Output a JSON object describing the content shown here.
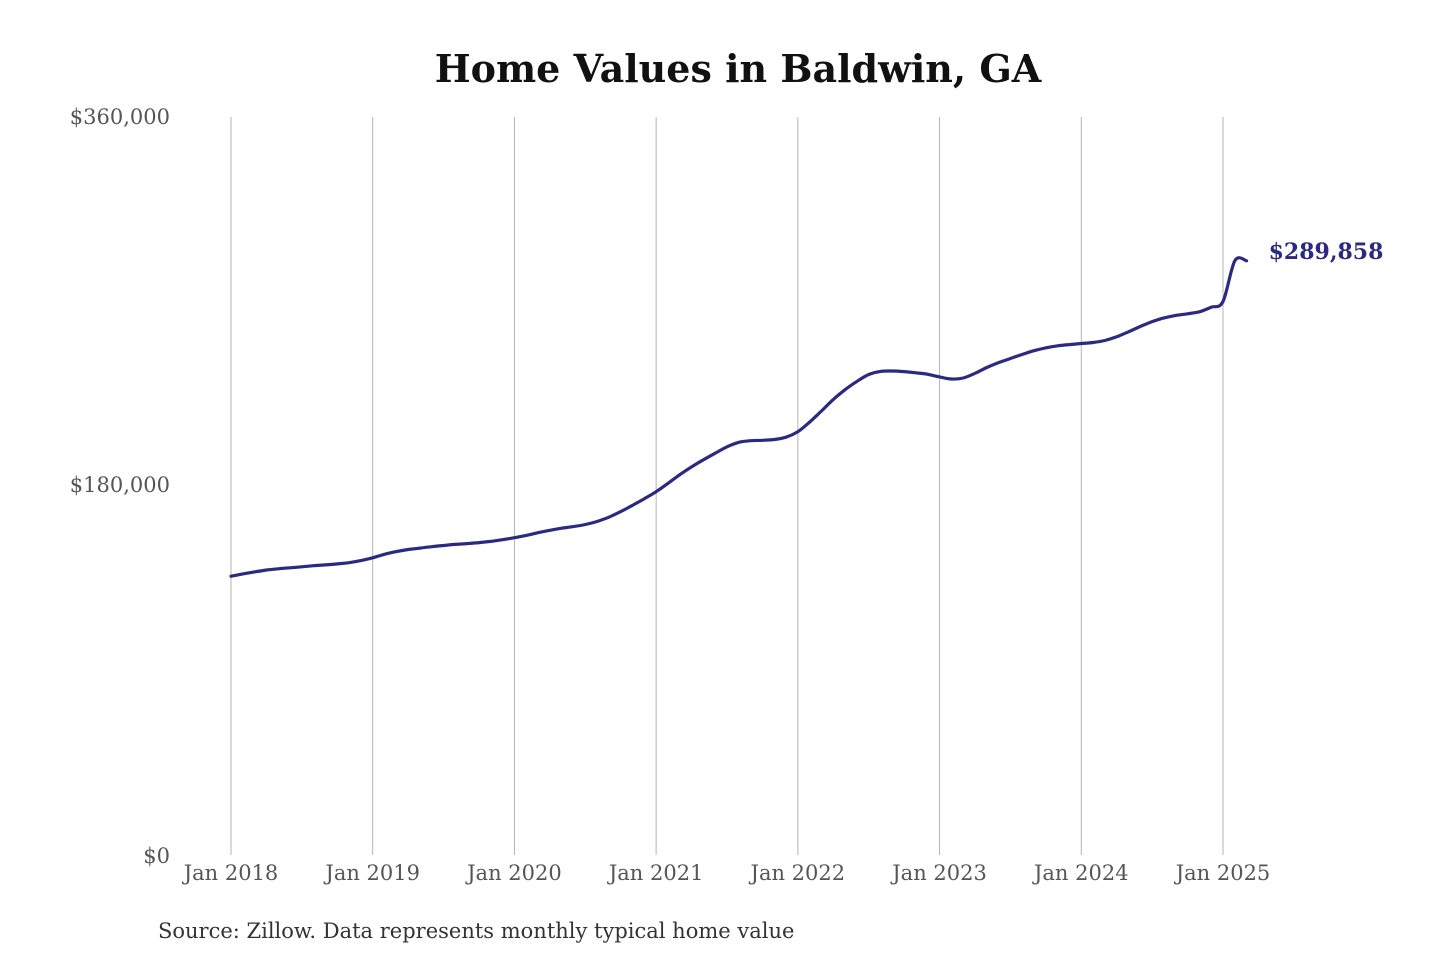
{
  "chart_data": {
    "type": "line",
    "title": "Home Values in Baldwin, GA",
    "source": "Source: Zillow. Data represents monthly typical home value",
    "y_ticks": [
      "$360,000",
      "$180,000",
      "$0"
    ],
    "y_tick_values": [
      360000,
      180000,
      0
    ],
    "ylim": [
      0,
      360000
    ],
    "x_ticks": [
      "Jan 2018",
      "Jan 2019",
      "Jan 2020",
      "Jan 2021",
      "Jan 2022",
      "Jan 2023",
      "Jan 2024",
      "Jan 2025"
    ],
    "x_tick_values": [
      "2018-01",
      "2019-01",
      "2020-01",
      "2021-01",
      "2022-01",
      "2023-01",
      "2024-01",
      "2025-01"
    ],
    "xlim": [
      "2018-01",
      "2025-03"
    ],
    "grid": "vertical",
    "line_color": "#2b2a80",
    "end_label": "$289,858",
    "series": [
      {
        "x": [
          "2018-01",
          "2018-02",
          "2018-03",
          "2018-04",
          "2018-05",
          "2018-06",
          "2018-07",
          "2018-08",
          "2018-09",
          "2018-10",
          "2018-11",
          "2018-12",
          "2019-01",
          "2019-02",
          "2019-03",
          "2019-04",
          "2019-05",
          "2019-06",
          "2019-07",
          "2019-08",
          "2019-09",
          "2019-10",
          "2019-11",
          "2019-12",
          "2020-01",
          "2020-02",
          "2020-03",
          "2020-04",
          "2020-05",
          "2020-06",
          "2020-07",
          "2020-08",
          "2020-09",
          "2020-10",
          "2020-11",
          "2020-12",
          "2021-01",
          "2021-02",
          "2021-03",
          "2021-04",
          "2021-05",
          "2021-06",
          "2021-07",
          "2021-08",
          "2021-09",
          "2021-10",
          "2021-11",
          "2021-12",
          "2022-01",
          "2022-02",
          "2022-03",
          "2022-04",
          "2022-05",
          "2022-06",
          "2022-07",
          "2022-08",
          "2022-09",
          "2022-10",
          "2022-11",
          "2022-12",
          "2023-01",
          "2023-02",
          "2023-03",
          "2023-04",
          "2023-05",
          "2023-06",
          "2023-07",
          "2023-08",
          "2023-09",
          "2023-10",
          "2023-11",
          "2023-12",
          "2024-01",
          "2024-02",
          "2024-03",
          "2024-04",
          "2024-05",
          "2024-06",
          "2024-07",
          "2024-08",
          "2024-09",
          "2024-10",
          "2024-11",
          "2024-12",
          "2025-01",
          "2025-02",
          "2025-03"
        ],
        "y": [
          136000,
          137100,
          138100,
          139000,
          139600,
          140100,
          140600,
          141100,
          141500,
          142000,
          142600,
          143600,
          145000,
          146700,
          148000,
          149000,
          149700,
          150400,
          151000,
          151500,
          151900,
          152400,
          153000,
          153800,
          154800,
          155900,
          157200,
          158400,
          159400,
          160200,
          161200,
          162700,
          164800,
          167500,
          170600,
          173800,
          177200,
          181300,
          185500,
          189300,
          192800,
          196000,
          199100,
          201300,
          202100,
          202300,
          202700,
          203800,
          206500,
          211200,
          216600,
          222200,
          227000,
          231000,
          234400,
          235900,
          236100,
          235800,
          235200,
          234500,
          233200,
          232200,
          232700,
          235000,
          237800,
          240200,
          242200,
          244200,
          246000,
          247400,
          248400,
          249000,
          249500,
          250000,
          251000,
          252800,
          255200,
          257800,
          260200,
          262000,
          263200,
          264000,
          265000,
          267200,
          270000,
          289858,
          289858
        ]
      }
    ]
  }
}
